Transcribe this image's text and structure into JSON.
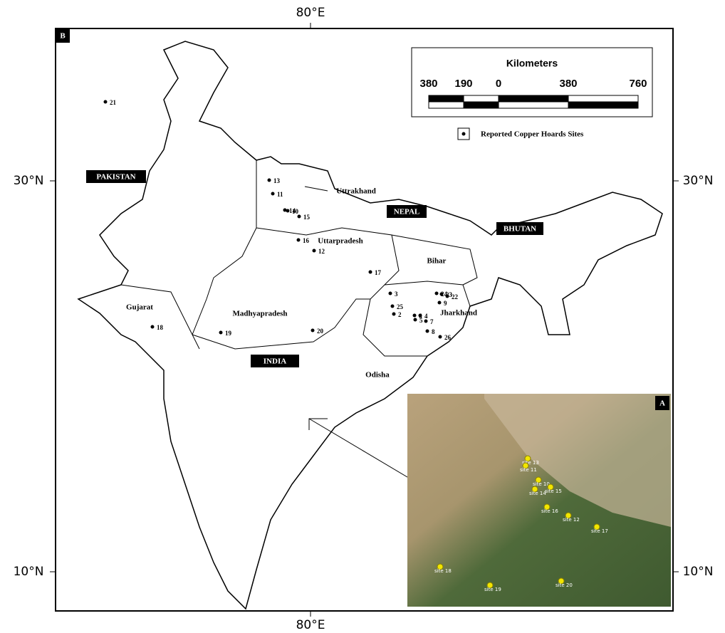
{
  "panel_b": "B",
  "panel_a": "A",
  "axes": {
    "top": "80°E",
    "bottom": "80°E",
    "left_top": "30°N",
    "left_bottom": "10°N",
    "right_top": "30°N",
    "right_bottom": "10°N"
  },
  "scale": {
    "title": "Kilometers",
    "ticks": [
      "380",
      "190",
      "0",
      "380",
      "760"
    ]
  },
  "legend": "Reported Copper Hoards Sites",
  "countries": [
    "PAKISTAN",
    "NEPAL",
    "BHUTAN",
    "INDIA"
  ],
  "states": [
    "Uttrakhand",
    "Uttarpradesh",
    "Bihar",
    "Jharkhand",
    "Gujarat",
    "Madhyapradesh",
    "Odisha"
  ],
  "sites": [
    "21",
    "13",
    "11",
    "14",
    "10",
    "15",
    "16",
    "12",
    "17",
    "3",
    "25",
    "2",
    "6",
    "4",
    "5",
    "7",
    "8",
    "26",
    "24",
    "23",
    "22",
    "9",
    "18",
    "19",
    "20"
  ],
  "inset_labels": [
    "site 13",
    "site 11",
    "site 10",
    "site 15",
    "site 14",
    "site 16",
    "site 12",
    "site 17",
    "site 18",
    "site 19",
    "site 20"
  ]
}
